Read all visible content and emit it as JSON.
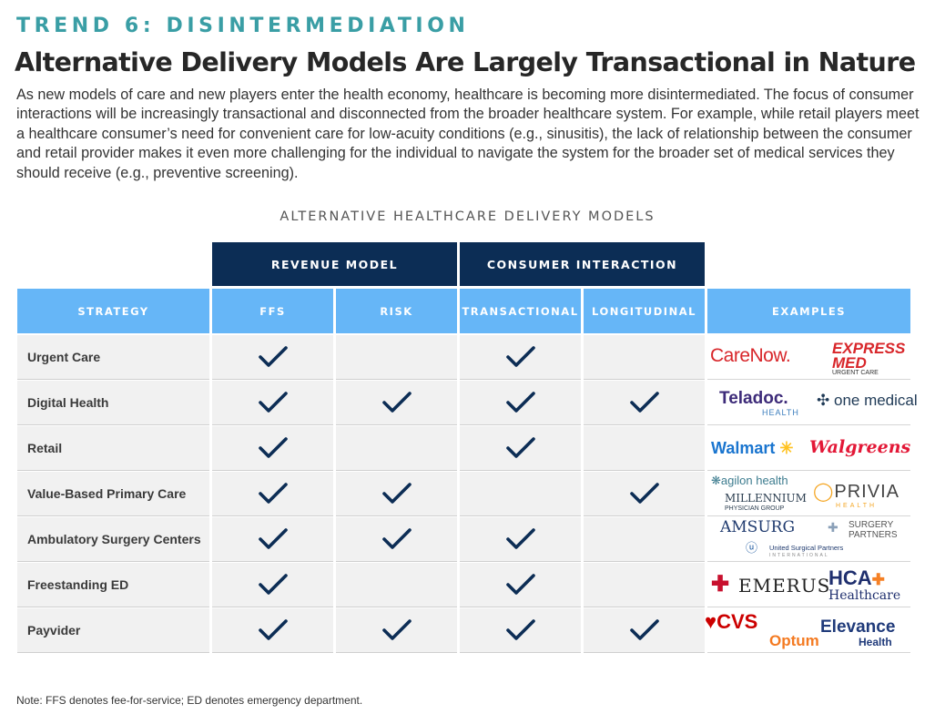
{
  "kicker": "TREND 6: DISINTERMEDIATION",
  "headline": "Alternative Delivery Models Are Largely Transactional in Nature",
  "lede": "As new models of care and new players enter the health economy, healthcare is becoming more disintermediated. The focus of consumer interactions will be increasingly transactional and disconnected from the broader healthcare system. For example, while retail players meet a healthcare consumer’s need for convenient care for low-acuity conditions (e.g., sinusitis), the lack of relationship between the consumer and retail provider makes it even more challenging for the individual to navigate the system for the broader set of medical services they should receive (e.g., preventive screening).",
  "table": {
    "caption": "ALTERNATIVE HEALTHCARE DELIVERY MODELS",
    "groups": {
      "revenue": "REVENUE MODEL",
      "consumer": "CONSUMER INTERACTION"
    },
    "columns": {
      "strategy": "STRATEGY",
      "ffs": "FFS",
      "risk": "RISK",
      "transactional": "TRANSACTIONAL",
      "longitudinal": "LONGITUDINAL",
      "examples": "EXAMPLES"
    },
    "rows": [
      {
        "strategy": "Urgent Care",
        "ffs": true,
        "risk": false,
        "transactional": true,
        "longitudinal": false
      },
      {
        "strategy": "Digital Health",
        "ffs": true,
        "risk": true,
        "transactional": true,
        "longitudinal": true
      },
      {
        "strategy": "Retail",
        "ffs": true,
        "risk": false,
        "transactional": true,
        "longitudinal": false
      },
      {
        "strategy": "Value-Based Primary Care",
        "ffs": true,
        "risk": true,
        "transactional": false,
        "longitudinal": true
      },
      {
        "strategy": "Ambulatory Surgery Centers",
        "ffs": true,
        "risk": true,
        "transactional": true,
        "longitudinal": false
      },
      {
        "strategy": "Freestanding ED",
        "ffs": true,
        "risk": false,
        "transactional": true,
        "longitudinal": false
      },
      {
        "strategy": "Payvider",
        "ffs": true,
        "risk": true,
        "transactional": true,
        "longitudinal": true
      }
    ],
    "check_icon": "checkmark-icon",
    "check_color": "#0c2d55"
  },
  "logos": {
    "carenow": "CareNow.",
    "express_med_1": "EXPRESS",
    "express_med_2": "MED",
    "express_med_3": "URGENT CARE",
    "teladoc": "Teladoc.",
    "teladoc_sub": "HEALTH",
    "one_medical": "one medical",
    "walmart": "Walmart",
    "walgreens": "Walgreens",
    "agilon": "agilon health",
    "millennium": "MILLENNIUM",
    "millennium_sub": "PHYSICIAN GROUP",
    "privia": "PRIVIA",
    "privia_sub": "HEALTH",
    "amsurg": "AMSURG",
    "surgery_partners_1": "SURGERY",
    "surgery_partners_2": "PARTNERS",
    "usp": "United Surgical Partners",
    "usp_sub": "INTERNATIONAL",
    "emerus": "EMERUS",
    "hca": "HCA",
    "hca_sub": "Healthcare",
    "cvs": "CVS",
    "optum": "Optum",
    "elevance": "Elevance",
    "elevance_sub": "Health"
  },
  "colors": {
    "accent_teal": "#3a9ea5",
    "navy": "#0c2d55",
    "sky": "#66b6f7",
    "row_bg": "#f1f1f1"
  },
  "note": "Note: FFS denotes fee-for-service; ED denotes emergency department."
}
